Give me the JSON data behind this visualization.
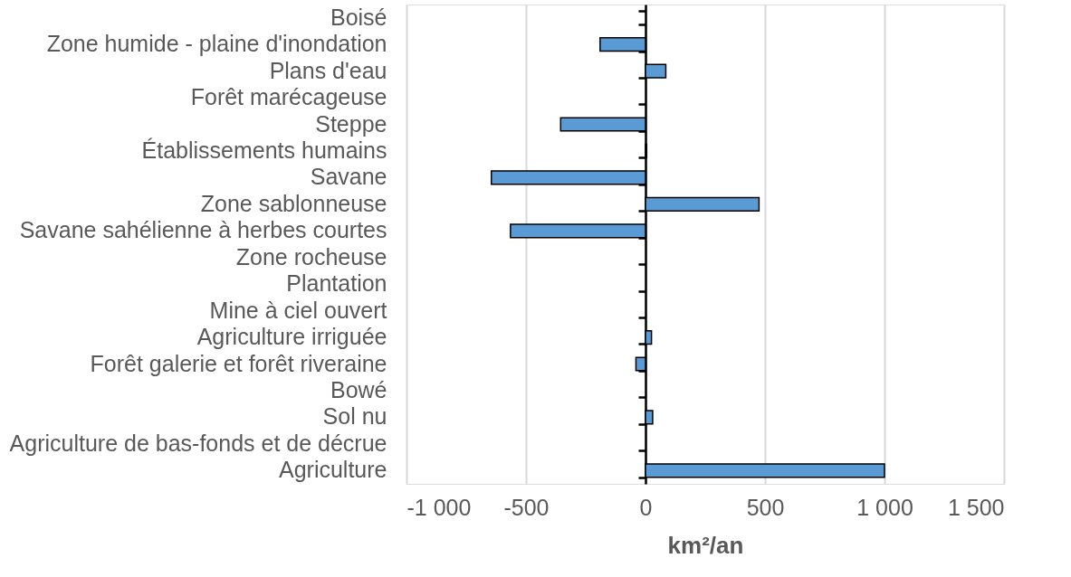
{
  "chart_data": {
    "type": "bar",
    "orientation": "horizontal",
    "xlabel": "km²/an",
    "categories": [
      "Boisé",
      "Zone humide - plaine d'inondation",
      "Plans d'eau",
      "Forêt marécageuse",
      "Steppe",
      "Établissements humains",
      "Savane",
      "Zone sablonneuse",
      "Savane sahélienne à herbes courtes",
      "Zone rocheuse",
      "Plantation",
      "Mine à ciel ouvert",
      "Agriculture irriguée",
      "Forêt galerie et forêt riveraine",
      "Bowé",
      "Sol nu",
      "Agriculture de bas-fonds et de décrue",
      "Agriculture"
    ],
    "values": [
      0,
      -190,
      85,
      0,
      -355,
      5,
      -645,
      475,
      -565,
      0,
      0,
      0,
      25,
      -40,
      0,
      30,
      0,
      1000
    ],
    "color": "#5b9bd5",
    "xlim": [
      -1000,
      1500
    ],
    "xticks": [
      {
        "value": -1000,
        "label": "-1 000"
      },
      -500,
      0,
      500,
      {
        "value": 1000,
        "label": "1 000"
      },
      {
        "value": 1500,
        "label": "1 500"
      }
    ],
    "grid": "x"
  }
}
